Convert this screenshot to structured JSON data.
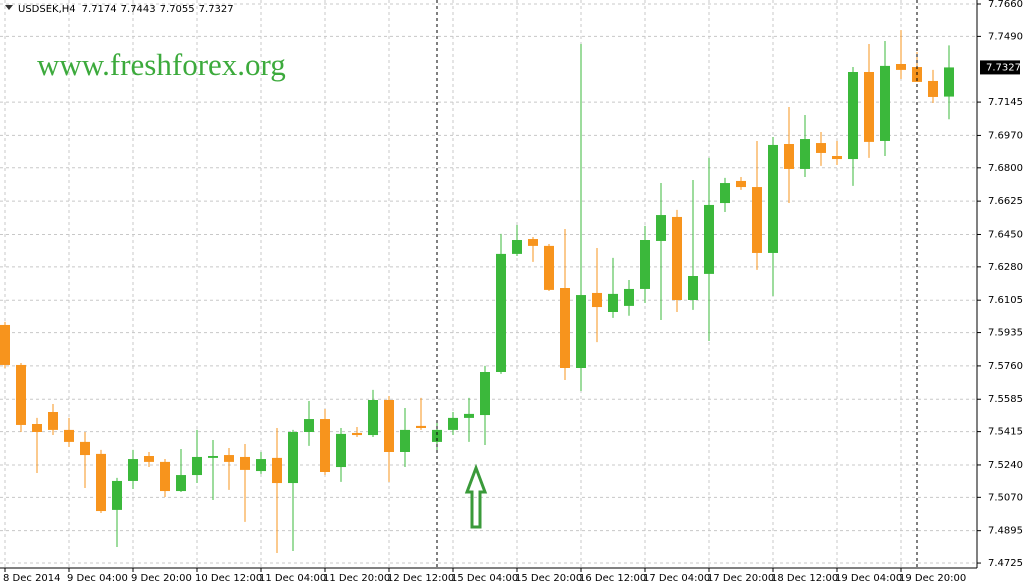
{
  "chart_data": {
    "type": "candlestick",
    "title": "USDSEK,H4",
    "watermark": "www.freshforex.org",
    "categories": [
      "8 Dec 2014",
      null,
      null,
      null,
      "9 Dec 04:00",
      null,
      null,
      null,
      "9 Dec 20:00",
      null,
      null,
      null,
      "10 Dec 12:00",
      null,
      null,
      null,
      "11 Dec 04:00",
      null,
      null,
      null,
      "11 Dec 20:00",
      null,
      null,
      null,
      "12 Dec 12:00",
      null,
      null,
      null,
      "15 Dec 04:00",
      null,
      null,
      null,
      "15 Dec 20:00",
      null,
      null,
      null,
      "16 Dec 12:00",
      null,
      null,
      null,
      "17 Dec 04:00",
      null,
      null,
      null,
      "17 Dec 20:00",
      null,
      null,
      null,
      "18 Dec 12:00",
      null,
      null,
      null,
      "19 Dec 04:00",
      null,
      null,
      null,
      "19 Dec 20:00",
      null,
      null,
      null
    ],
    "open": [
      7.5975,
      7.5765,
      7.5455,
      7.5518,
      7.5424,
      7.5361,
      7.5298,
      7.5004,
      7.5156,
      7.5287,
      7.5256,
      7.5103,
      7.5187,
      7.5277,
      7.5292,
      7.5282,
      7.5208,
      7.5277,
      7.5145,
      7.5413,
      7.5481,
      7.5229,
      7.5408,
      7.5397,
      7.5581,
      7.5308,
      7.5445,
      7.5361,
      7.5424,
      7.5487,
      7.5502,
      7.5728,
      7.6348,
      7.6426,
      7.639,
      7.6169,
      7.5749,
      7.6143,
      7.6043,
      7.6075,
      7.6164,
      7.6416,
      7.6542,
      7.6106,
      7.6243,
      7.6615,
      7.6731,
      7.6699,
      7.6353,
      7.6925,
      7.6794,
      7.693,
      7.6862,
      7.6846,
      7.7303,
      7.6941,
      7.7345,
      7.7329,
      7.7256,
      7.7174
    ],
    "high": [
      7.5991,
      7.5775,
      7.5487,
      7.556,
      7.5487,
      7.5413,
      7.5319,
      7.5172,
      7.5319,
      7.5308,
      7.5271,
      7.5324,
      7.5424,
      7.5371,
      7.5329,
      7.535,
      7.5308,
      7.5434,
      7.5424,
      7.5576,
      7.5534,
      7.5434,
      7.5439,
      7.5634,
      7.5602,
      7.5539,
      7.5592,
      7.5476,
      7.5518,
      7.5592,
      7.576,
      7.6453,
      7.65,
      7.6437,
      7.64,
      7.6479,
      7.745,
      7.6379,
      7.6327,
      7.6211,
      7.6495,
      7.672,
      7.6579,
      7.6736,
      7.6852,
      7.6747,
      7.6752,
      7.6941,
      7.6962,
      7.7119,
      7.7077,
      7.6988,
      7.6941,
      7.7329,
      7.745,
      7.7466,
      7.7523,
      7.7408,
      7.7314,
      7.7443
    ],
    "low": [
      7.5749,
      7.5413,
      7.5198,
      7.5397,
      7.5334,
      7.5119,
      7.4988,
      7.4809,
      7.5114,
      7.5229,
      7.5072,
      7.5098,
      7.5145,
      7.5056,
      7.5109,
      7.4941,
      7.5193,
      7.4778,
      7.4788,
      7.534,
      7.5187,
      7.5151,
      7.5387,
      7.5387,
      7.5151,
      7.5229,
      7.5424,
      7.5308,
      7.5397,
      7.5361,
      7.5345,
      7.5718,
      7.6337,
      7.6306,
      7.6153,
      7.5686,
      7.5628,
      7.5885,
      7.6012,
      7.6023,
      7.609,
      7.6001,
      7.6043,
      7.6054,
      7.5891,
      7.6568,
      7.6684,
      7.6264,
      7.6127,
      7.6615,
      7.6752,
      7.681,
      7.6815,
      7.6705,
      7.6852,
      7.6862,
      7.7266,
      7.7251,
      7.714,
      7.7055
    ],
    "close": [
      7.5765,
      7.545,
      7.5413,
      7.5424,
      7.5361,
      7.5292,
      7.4998,
      7.5156,
      7.5271,
      7.5256,
      7.5103,
      7.5187,
      7.5282,
      7.5287,
      7.5256,
      7.5214,
      7.5271,
      7.5145,
      7.5413,
      7.5481,
      7.5203,
      7.5403,
      7.5397,
      7.5581,
      7.5308,
      7.5424,
      7.5434,
      7.5424,
      7.5487,
      7.5508,
      7.5728,
      7.6348,
      7.6421,
      7.639,
      7.6159,
      7.5749,
      7.6132,
      7.6069,
      7.6138,
      7.6164,
      7.6421,
      7.6552,
      7.6106,
      7.6232,
      7.6605,
      7.672,
      7.6699,
      7.6353,
      7.692,
      7.6794,
      7.6951,
      7.6878,
      7.6846,
      7.7303,
      7.6936,
      7.7335,
      7.7314,
      7.7251,
      7.7172,
      7.7327
    ],
    "up_color": "#3bb83b",
    "down_color": "#f7941d",
    "ylim": [
      7.4699,
      7.7681
    ],
    "yticks": [
      {
        "value": 7.766,
        "label": "7.7660"
      },
      {
        "value": 7.749,
        "label": "7.7490"
      },
      7.7145,
      {
        "value": 7.697,
        "label": "7.6970"
      },
      {
        "value": 7.68,
        "label": "7.6800"
      },
      7.6625,
      {
        "value": 7.645,
        "label": "7.6450"
      },
      {
        "value": 7.628,
        "label": "7.6280"
      },
      7.6105,
      7.5935,
      {
        "value": 7.576,
        "label": "7.5760"
      },
      7.5585,
      7.5415,
      {
        "value": 7.524,
        "label": "7.5240"
      },
      {
        "value": 7.507,
        "label": "7.5070"
      },
      7.4895,
      7.4725
    ],
    "grid": true
  }
}
